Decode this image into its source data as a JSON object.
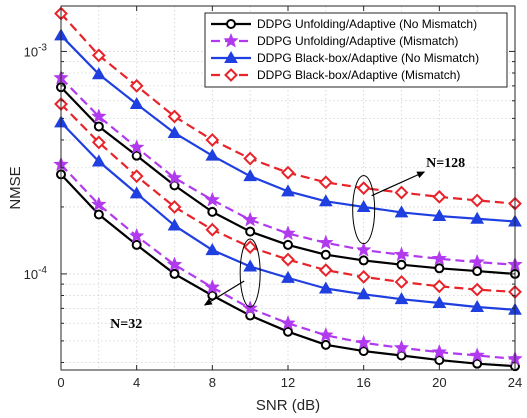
{
  "chart_data": {
    "type": "line",
    "xlabel": "SNR (dB)",
    "ylabel": "NMSE",
    "x_ticks": [
      "0",
      "4",
      "8",
      "12",
      "16",
      "20",
      "24"
    ],
    "y_tick_labels": [
      {
        "value": 0.0001,
        "base": "10",
        "exp": "-4"
      },
      {
        "value": 0.001,
        "base": "10",
        "exp": "-3"
      }
    ],
    "y_scale": "log",
    "xlim": [
      0,
      24
    ],
    "ylim": [
      3.7e-05,
      0.0016
    ],
    "grid": true,
    "legend_position": "top-right",
    "x": [
      0,
      2,
      4,
      6,
      8,
      10,
      12,
      14,
      16,
      18,
      20,
      22,
      24
    ],
    "series": [
      {
        "name": "DDPG Unfolding/Adaptive (No Mismatch)",
        "color": "#000000",
        "marker": "circle",
        "dash": "solid",
        "groups": [
          {
            "label": "N=128",
            "values": [
              0.00069,
              0.00046,
              0.00034,
              0.00025,
              0.00019,
              0.000155,
              0.000135,
              0.000122,
              0.000115,
              0.00011,
              0.000106,
              0.000103,
              0.0001
            ]
          },
          {
            "label": "N=32",
            "values": [
              0.00028,
              0.000185,
              0.000135,
              0.0001,
              8e-05,
              6.5e-05,
              5.5e-05,
              4.8e-05,
              4.5e-05,
              4.3e-05,
              4.1e-05,
              3.95e-05,
              3.85e-05
            ]
          }
        ]
      },
      {
        "name": "DDPG Unfolding/Adaptive (Mismatch)",
        "color": "#b23aee",
        "marker": "star",
        "dash": "dashed",
        "groups": [
          {
            "label": "N=128",
            "values": [
              0.00076,
              0.00051,
              0.00037,
              0.00027,
              0.000215,
              0.000175,
              0.000152,
              0.000138,
              0.000128,
              0.000122,
              0.000117,
              0.000113,
              0.00011
            ]
          },
          {
            "label": "N=32",
            "values": [
              0.00031,
              0.000205,
              0.000148,
              0.00011,
              8.7e-05,
              7e-05,
              6e-05,
              5.3e-05,
              4.9e-05,
              4.65e-05,
              4.45e-05,
              4.3e-05,
              4.15e-05
            ]
          }
        ]
      },
      {
        "name": "DDPG Black-box/Adaptive (No Mismatch)",
        "color": "#1f3fe0",
        "marker": "triangle",
        "dash": "solid",
        "groups": [
          {
            "label": "N=128",
            "values": [
              0.00118,
              0.00079,
              0.00058,
              0.00043,
              0.00034,
              0.000275,
              0.000235,
              0.000212,
              0.0002,
              0.000189,
              0.000182,
              0.000177,
              0.000172
            ]
          },
          {
            "label": "N=32",
            "values": [
              0.00048,
              0.00032,
              0.00023,
              0.000165,
              0.000128,
              0.000108,
              9.6e-05,
              8.6e-05,
              8.1e-05,
              7.7e-05,
              7.4e-05,
              7.1e-05,
              6.9e-05
            ]
          }
        ]
      },
      {
        "name": "DDPG Black-box/Adaptive (Mismatch)",
        "color": "#e8232a",
        "marker": "diamond",
        "dash": "dashed",
        "groups": [
          {
            "label": "N=128",
            "values": [
              0.00148,
              0.00096,
              0.0007,
              0.00051,
              0.0004,
              0.00033,
              0.000285,
              0.000258,
              0.000243,
              0.000232,
              0.000222,
              0.000214,
              0.000207
            ]
          },
          {
            "label": "N=32",
            "values": [
              0.00058,
              0.00039,
              0.000275,
              0.0002,
              0.000158,
              0.000132,
              0.000116,
              0.000104,
              9.7e-05,
              9.2e-05,
              8.8e-05,
              8.5e-05,
              8.3e-05
            ]
          }
        ]
      }
    ],
    "annotations": [
      {
        "text": "N=128",
        "at_x": 16,
        "at_y": 0.000135,
        "to_x": 16,
        "to_y": 0.00028
      },
      {
        "text": "N=32",
        "at_x": 10,
        "at_y": 8.5e-05,
        "to_x": 10,
        "to_y": 0.00012
      }
    ]
  }
}
